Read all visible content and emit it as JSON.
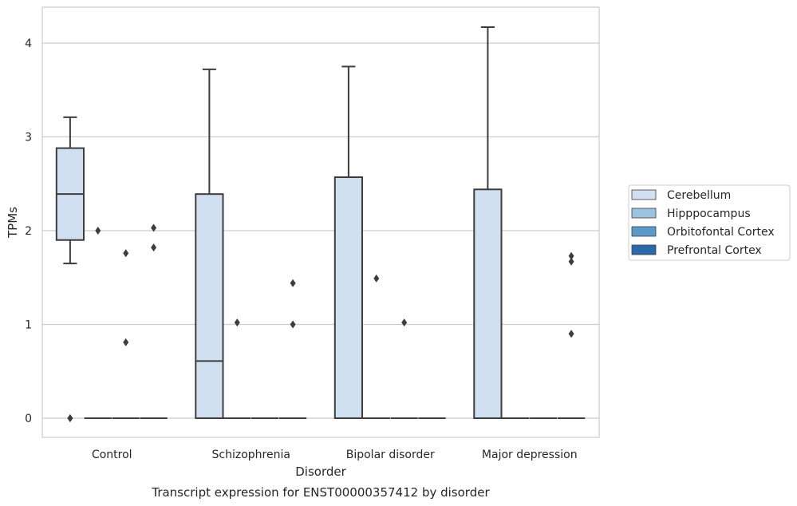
{
  "chart_data": {
    "type": "box",
    "title": "Transcript expression for ENST00000357412 by disorder",
    "xlabel": "Disorder",
    "ylabel": "TPMs",
    "ylim": [
      -0.2,
      4.38
    ],
    "yticks": [
      0,
      1,
      2,
      3,
      4
    ],
    "categories": [
      "Control",
      "Schizophrenia",
      "Bipolar disorder",
      "Major depression"
    ],
    "grid": true,
    "legend_position": "right",
    "series": [
      {
        "name": "Cerebellum",
        "color": "#d1e0f0",
        "boxes": [
          {
            "q1": 1.9,
            "median": 2.39,
            "q3": 2.88,
            "whislo": 1.65,
            "whishi": 3.21
          },
          {
            "q1": 0.0,
            "median": 0.61,
            "q3": 2.39,
            "whislo": 0.0,
            "whishi": 3.72
          },
          {
            "q1": 0.0,
            "median": 0.0,
            "q3": 2.57,
            "whislo": 0.0,
            "whishi": 3.75
          },
          {
            "q1": 0.0,
            "median": 0.0,
            "q3": 2.44,
            "whislo": 0.0,
            "whishi": 4.17
          }
        ],
        "outliers": [
          [
            0.0,
            0.0
          ],
          [],
          [],
          []
        ]
      },
      {
        "name": "Hipppocampus",
        "color": "#9cc3de",
        "boxes": [
          {
            "q1": 0,
            "median": 0,
            "q3": 0,
            "whislo": 0,
            "whishi": 0
          },
          {
            "q1": 0,
            "median": 0,
            "q3": 0,
            "whislo": 0,
            "whishi": 0
          },
          {
            "q1": 0,
            "median": 0,
            "q3": 0,
            "whislo": 0,
            "whishi": 0
          },
          {
            "q1": 0,
            "median": 0,
            "q3": 0,
            "whislo": 0,
            "whishi": 0
          }
        ],
        "outliers": [
          [
            2.0
          ],
          [
            1.02
          ],
          [
            1.49
          ],
          []
        ]
      },
      {
        "name": "Orbitofontal Cortex",
        "color": "#5b9ac8",
        "boxes": [
          {
            "q1": 0,
            "median": 0,
            "q3": 0,
            "whislo": 0,
            "whishi": 0
          },
          {
            "q1": 0,
            "median": 0,
            "q3": 0,
            "whislo": 0,
            "whishi": 0
          },
          {
            "q1": 0,
            "median": 0,
            "q3": 0,
            "whislo": 0,
            "whishi": 0
          },
          {
            "q1": 0,
            "median": 0,
            "q3": 0,
            "whislo": 0,
            "whishi": 0
          }
        ],
        "outliers": [
          [
            1.76,
            0.81
          ],
          [],
          [
            1.02
          ],
          []
        ]
      },
      {
        "name": "Prefrontal Cortex",
        "color": "#2a6aaa",
        "boxes": [
          {
            "q1": 0,
            "median": 0,
            "q3": 0,
            "whislo": 0,
            "whishi": 0
          },
          {
            "q1": 0,
            "median": 0,
            "q3": 0,
            "whislo": 0,
            "whishi": 0
          },
          {
            "q1": 0,
            "median": 0,
            "q3": 0,
            "whislo": 0,
            "whishi": 0
          },
          {
            "q1": 0,
            "median": 0,
            "q3": 0,
            "whislo": 0,
            "whishi": 0
          }
        ],
        "outliers": [
          [
            2.03,
            1.82
          ],
          [
            1.44,
            1.0
          ],
          [],
          [
            1.73,
            1.67,
            0.9
          ]
        ]
      }
    ]
  }
}
